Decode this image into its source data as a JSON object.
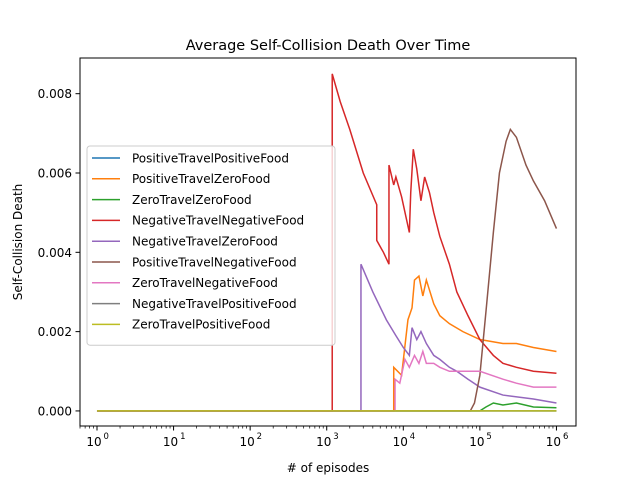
{
  "chart_data": {
    "type": "line",
    "title": "Average Self-Collision Death Over Time",
    "xlabel": "# of episodes",
    "ylabel": "Self-Collision Death",
    "xscale": "log",
    "xlim": [
      0.6,
      1800000
    ],
    "ylim": [
      -0.00038,
      0.0089
    ],
    "x_ticks": [
      {
        "value": 1,
        "base": "10",
        "exp": "0"
      },
      {
        "value": 10,
        "base": "10",
        "exp": "1"
      },
      {
        "value": 100,
        "base": "10",
        "exp": "2"
      },
      {
        "value": 1000,
        "base": "10",
        "exp": "3"
      },
      {
        "value": 10000,
        "base": "10",
        "exp": "4"
      },
      {
        "value": 100000,
        "base": "10",
        "exp": "5"
      },
      {
        "value": 1000000,
        "base": "10",
        "exp": "6"
      }
    ],
    "y_ticks": [
      {
        "value": 0.0,
        "label": "0.000"
      },
      {
        "value": 0.002,
        "label": "0.002"
      },
      {
        "value": 0.004,
        "label": "0.004"
      },
      {
        "value": 0.006,
        "label": "0.006"
      },
      {
        "value": 0.008,
        "label": "0.008"
      }
    ],
    "grid": false,
    "legend_position": "center-left",
    "series": [
      {
        "name": "PositiveTravelPositiveFood",
        "color": "#1f77b4",
        "points": [
          [
            1,
            0
          ],
          [
            1000000,
            0
          ]
        ]
      },
      {
        "name": "PositiveTravelZeroFood",
        "color": "#ff7f0e",
        "points": [
          [
            1,
            0
          ],
          [
            7500,
            0
          ],
          [
            7500,
            0.0011
          ],
          [
            9500,
            0.0009
          ],
          [
            11500,
            0.0023
          ],
          [
            13000,
            0.0026
          ],
          [
            14000,
            0.0033
          ],
          [
            16000,
            0.0034
          ],
          [
            18000,
            0.0029
          ],
          [
            20000,
            0.0033
          ],
          [
            25000,
            0.0027
          ],
          [
            30000,
            0.0024
          ],
          [
            40000,
            0.0022
          ],
          [
            60000,
            0.002
          ],
          [
            100000,
            0.0018
          ],
          [
            200000,
            0.0017
          ],
          [
            300000,
            0.0017
          ],
          [
            500000,
            0.0016
          ],
          [
            1000000,
            0.0015
          ]
        ]
      },
      {
        "name": "ZeroTravelZeroFood",
        "color": "#2ca02c",
        "points": [
          [
            1,
            0
          ],
          [
            100000,
            0
          ],
          [
            120000,
            0.0001
          ],
          [
            150000,
            0.0002
          ],
          [
            200000,
            0.00015
          ],
          [
            300000,
            0.0002
          ],
          [
            500000,
            0.0001
          ],
          [
            1000000,
            8e-05
          ]
        ]
      },
      {
        "name": "NegativeTravelNegativeFood",
        "color": "#d62728",
        "points": [
          [
            1,
            0
          ],
          [
            1180,
            0
          ],
          [
            1180,
            0.0085
          ],
          [
            1500,
            0.0078
          ],
          [
            2000,
            0.0071
          ],
          [
            3000,
            0.006
          ],
          [
            4500,
            0.0052
          ],
          [
            4500,
            0.0043
          ],
          [
            5500,
            0.004
          ],
          [
            6500,
            0.0037
          ],
          [
            6500,
            0.0062
          ],
          [
            7500,
            0.0057
          ],
          [
            8000,
            0.0059
          ],
          [
            9500,
            0.0054
          ],
          [
            12000,
            0.0045
          ],
          [
            12500,
            0.0055
          ],
          [
            13500,
            0.0066
          ],
          [
            15000,
            0.0061
          ],
          [
            17000,
            0.0053
          ],
          [
            19000,
            0.0059
          ],
          [
            22000,
            0.0055
          ],
          [
            25000,
            0.005
          ],
          [
            30000,
            0.0044
          ],
          [
            40000,
            0.0037
          ],
          [
            50000,
            0.003
          ],
          [
            70000,
            0.0024
          ],
          [
            100000,
            0.0018
          ],
          [
            150000,
            0.0014
          ],
          [
            200000,
            0.0012
          ],
          [
            300000,
            0.0011
          ],
          [
            500000,
            0.001
          ],
          [
            1000000,
            0.00095
          ]
        ]
      },
      {
        "name": "NegativeTravelZeroFood",
        "color": "#9467bd",
        "points": [
          [
            1,
            0
          ],
          [
            2800,
            0
          ],
          [
            2800,
            0.0037
          ],
          [
            4000,
            0.003
          ],
          [
            6000,
            0.0023
          ],
          [
            8000,
            0.0019
          ],
          [
            10000,
            0.0016
          ],
          [
            12000,
            0.0014
          ],
          [
            13000,
            0.0021
          ],
          [
            15000,
            0.0018
          ],
          [
            17000,
            0.002
          ],
          [
            20000,
            0.0017
          ],
          [
            25000,
            0.0014
          ],
          [
            30000,
            0.0013
          ],
          [
            40000,
            0.0011
          ],
          [
            50000,
            0.001
          ],
          [
            70000,
            0.0008
          ],
          [
            100000,
            0.0006
          ],
          [
            200000,
            0.0004
          ],
          [
            500000,
            0.0003
          ],
          [
            1000000,
            0.0002
          ]
        ]
      },
      {
        "name": "PositiveTravelNegativeFood",
        "color": "#8c564b",
        "points": [
          [
            1,
            0
          ],
          [
            75000,
            0
          ],
          [
            85000,
            0.0002
          ],
          [
            100000,
            0.0009
          ],
          [
            120000,
            0.0025
          ],
          [
            150000,
            0.0045
          ],
          [
            180000,
            0.006
          ],
          [
            220000,
            0.0068
          ],
          [
            250000,
            0.0071
          ],
          [
            300000,
            0.0069
          ],
          [
            400000,
            0.0062
          ],
          [
            500000,
            0.0058
          ],
          [
            700000,
            0.0053
          ],
          [
            1000000,
            0.0046
          ]
        ]
      },
      {
        "name": "ZeroTravelNegativeFood",
        "color": "#e377c2",
        "points": [
          [
            1,
            0
          ],
          [
            7800,
            0
          ],
          [
            7800,
            0.0008
          ],
          [
            9000,
            0.0007
          ],
          [
            10500,
            0.0013
          ],
          [
            12000,
            0.0011
          ],
          [
            14000,
            0.0014
          ],
          [
            16000,
            0.0012
          ],
          [
            18000,
            0.0015
          ],
          [
            20000,
            0.0012
          ],
          [
            25000,
            0.0012
          ],
          [
            30000,
            0.0011
          ],
          [
            40000,
            0.001
          ],
          [
            60000,
            0.001
          ],
          [
            100000,
            0.001
          ],
          [
            200000,
            0.0008
          ],
          [
            300000,
            0.0007
          ],
          [
            500000,
            0.0006
          ],
          [
            1000000,
            0.0006
          ]
        ]
      },
      {
        "name": "NegativeTravelPositiveFood",
        "color": "#7f7f7f",
        "points": [
          [
            1,
            0
          ],
          [
            1000000,
            0
          ]
        ]
      },
      {
        "name": "ZeroTravelPositiveFood",
        "color": "#bcbd22",
        "points": [
          [
            1,
            0
          ],
          [
            1000000,
            0
          ]
        ]
      }
    ]
  }
}
